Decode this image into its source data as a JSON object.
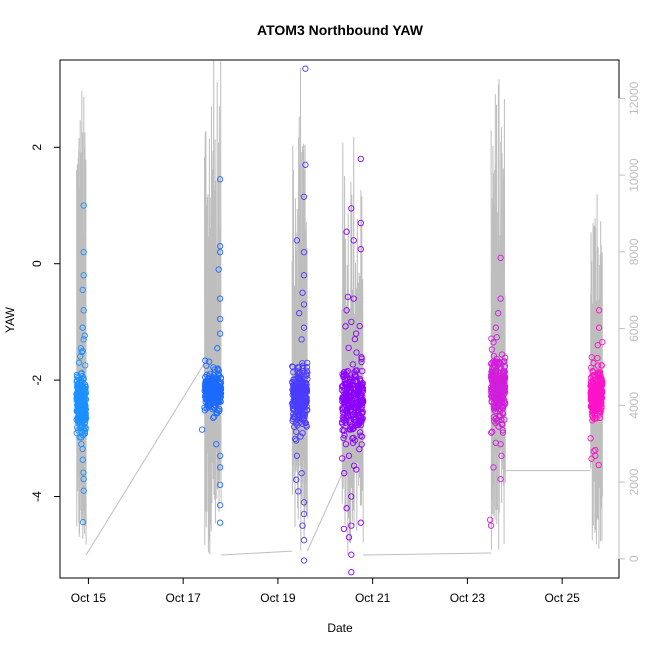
{
  "chart_data": {
    "type": "scatter",
    "title": "ATOM3 Northbound YAW",
    "xlabel": "Date",
    "ylabel": "YAW",
    "x_ticks": [
      "Oct 15",
      "Oct 17",
      "Oct 19",
      "Oct 21",
      "Oct 23",
      "Oct 25"
    ],
    "x_tick_days": [
      15,
      17,
      19,
      21,
      23,
      25
    ],
    "xlim_days": [
      14.4,
      26.2
    ],
    "y_ticks": [
      -4,
      -2,
      0,
      2
    ],
    "ylim": [
      -5.4,
      3.5
    ],
    "y2_ticks": [
      0,
      2000,
      4000,
      6000,
      8000,
      10000,
      12000
    ],
    "y2lim": [
      -500,
      13000
    ],
    "y2_color": "#bebebe",
    "grid": false,
    "legend": "none",
    "series": [
      {
        "kind": "points",
        "color": "#1e90ff",
        "x_range": [
          14.75,
          14.95
        ],
        "center": -2.45,
        "spread": 0.22,
        "outliers": [
          [
            14.9,
            1.0
          ],
          [
            14.9,
            0.2
          ],
          [
            14.9,
            -0.2
          ],
          [
            14.88,
            -0.45
          ],
          [
            14.9,
            -0.8
          ],
          [
            14.88,
            -1.1
          ],
          [
            14.9,
            -1.3
          ],
          [
            14.88,
            -1.5
          ],
          [
            14.9,
            -3.7
          ],
          [
            14.9,
            -3.9
          ],
          [
            14.85,
            -3.1
          ],
          [
            14.8,
            -1.7
          ]
        ]
      },
      {
        "kind": "points",
        "color": "#1c6bff",
        "x_range": [
          17.45,
          17.8
        ],
        "center": -2.2,
        "spread": 0.15,
        "outliers": [
          [
            17.78,
            1.45
          ],
          [
            17.78,
            0.3
          ],
          [
            17.78,
            0.2
          ],
          [
            17.75,
            -0.1
          ],
          [
            17.78,
            -0.6
          ],
          [
            17.78,
            -0.95
          ],
          [
            17.78,
            -1.2
          ],
          [
            17.78,
            -3.3
          ],
          [
            17.78,
            -3.5
          ],
          [
            17.78,
            -3.8
          ],
          [
            17.78,
            -4.15
          ],
          [
            17.78,
            -4.45
          ],
          [
            17.4,
            -2.85
          ],
          [
            17.7,
            -3.1
          ]
        ]
      },
      {
        "kind": "points",
        "color": "#4b3cff",
        "x_range": [
          19.3,
          19.62
        ],
        "center": -2.3,
        "spread": 0.25,
        "outliers": [
          [
            19.58,
            3.35
          ],
          [
            19.58,
            1.7
          ],
          [
            19.55,
            1.15
          ],
          [
            19.4,
            0.4
          ],
          [
            19.55,
            0.2
          ],
          [
            19.55,
            -0.2
          ],
          [
            19.52,
            -0.5
          ],
          [
            19.55,
            -0.7
          ],
          [
            19.45,
            -0.85
          ],
          [
            19.55,
            -1.1
          ],
          [
            19.5,
            -1.3
          ],
          [
            19.55,
            -4.1
          ],
          [
            19.55,
            -4.3
          ],
          [
            19.52,
            -4.5
          ],
          [
            19.55,
            -4.75
          ],
          [
            19.55,
            -5.1
          ],
          [
            19.4,
            -3.3
          ],
          [
            19.5,
            -3.6
          ]
        ]
      },
      {
        "kind": "points",
        "color": "#8c00ff",
        "x_range": [
          20.35,
          20.8
        ],
        "center": -2.35,
        "spread": 0.3,
        "outliers": [
          [
            20.75,
            1.8
          ],
          [
            20.55,
            0.95
          ],
          [
            20.75,
            0.7
          ],
          [
            20.45,
            0.55
          ],
          [
            20.6,
            0.4
          ],
          [
            20.75,
            0.25
          ],
          [
            20.6,
            -0.6
          ],
          [
            20.45,
            -0.8
          ],
          [
            20.55,
            -1.0
          ],
          [
            20.65,
            -1.2
          ],
          [
            20.55,
            -4.0
          ],
          [
            20.45,
            -4.2
          ],
          [
            20.55,
            -4.5
          ],
          [
            20.5,
            -4.7
          ],
          [
            20.55,
            -5.0
          ],
          [
            20.55,
            -5.3
          ],
          [
            20.75,
            -4.45
          ],
          [
            20.4,
            -3.6
          ],
          [
            20.5,
            -3.3
          ]
        ]
      },
      {
        "kind": "points",
        "color": "#d21edc",
        "x_range": [
          23.5,
          23.8
        ],
        "center": -2.1,
        "spread": 0.25,
        "outliers": [
          [
            23.7,
            0.1
          ],
          [
            23.7,
            -0.6
          ],
          [
            23.65,
            -0.85
          ],
          [
            23.6,
            -1.1
          ],
          [
            23.55,
            -1.35
          ],
          [
            23.7,
            -3.1
          ],
          [
            23.72,
            -3.3
          ],
          [
            23.7,
            -3.7
          ],
          [
            23.48,
            -4.4
          ],
          [
            23.5,
            -4.5
          ],
          [
            23.55,
            -3.5
          ]
        ]
      },
      {
        "kind": "points",
        "color": "#ff14c8",
        "x_range": [
          25.6,
          25.85
        ],
        "center": -2.25,
        "spread": 0.2,
        "outliers": [
          [
            25.78,
            -0.8
          ],
          [
            25.78,
            -1.1
          ],
          [
            25.75,
            -1.4
          ],
          [
            25.7,
            -3.2
          ],
          [
            25.7,
            -3.3
          ],
          [
            25.62,
            -3.35
          ],
          [
            25.6,
            -3.0
          ]
        ]
      }
    ],
    "secondary_line": {
      "kind": "line",
      "axis": "right",
      "color": "#bebebe",
      "segments": [
        {
          "x_range": [
            14.75,
            14.95
          ],
          "low": 100,
          "high": 12200,
          "base": 4200
        },
        {
          "x_range": [
            17.45,
            17.8
          ],
          "low": 100,
          "high": 13000,
          "base": 4800
        },
        {
          "x_range": [
            19.3,
            19.62
          ],
          "low": 200,
          "high": 12800,
          "base": 4500
        },
        {
          "x_range": [
            20.35,
            20.8
          ],
          "low": 100,
          "high": 11000,
          "base": 4200
        },
        {
          "x_range": [
            23.5,
            23.8
          ],
          "low": 150,
          "high": 12500,
          "base": 4800
        },
        {
          "x_range": [
            25.6,
            25.85
          ],
          "low": 150,
          "high": 9500,
          "base": 4600
        }
      ],
      "connectors": [
        [
          [
            14.95,
            100
          ],
          [
            17.45,
            5100
          ]
        ],
        [
          [
            17.8,
            100
          ],
          [
            19.3,
            200
          ]
        ],
        [
          [
            19.62,
            200
          ],
          [
            20.35,
            2200
          ]
        ],
        [
          [
            20.8,
            100
          ],
          [
            23.5,
            150
          ]
        ],
        [
          [
            23.8,
            2300
          ],
          [
            25.6,
            2300
          ]
        ]
      ]
    }
  }
}
